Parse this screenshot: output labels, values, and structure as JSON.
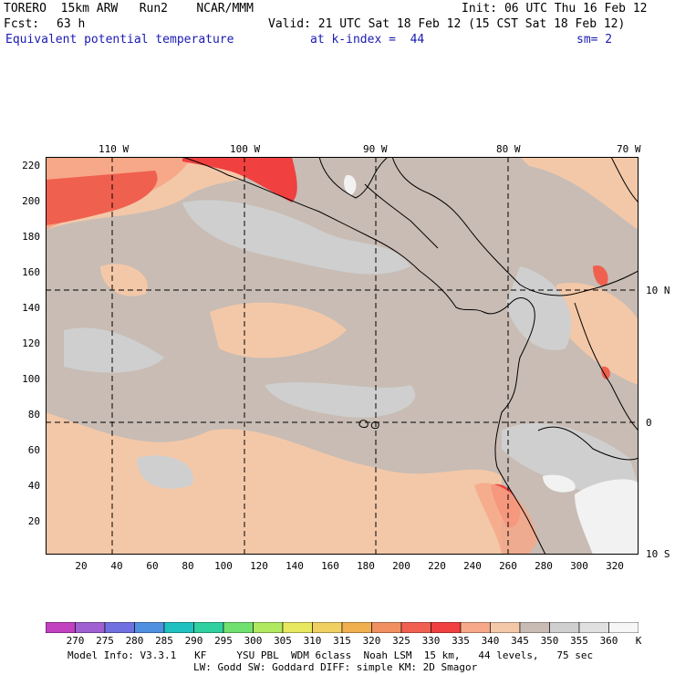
{
  "header": {
    "model": "TORERO  15km ARW   Run2    NCAR/MMM",
    "init": "Init: 06 UTC Thu 16 Feb 12",
    "fcst_label": "Fcst:",
    "fcst_value": "63 h",
    "valid": "Valid: 21 UTC Sat 18 Feb 12 (15 CST Sat 18 Feb 12)",
    "field": "Equivalent potential temperature",
    "level": "at k-index =  44",
    "smooth": "sm= 2"
  },
  "map": {
    "lon_labels": [
      "110 W",
      "100 W",
      "90 W",
      "80 W",
      "70 W"
    ],
    "lat_labels": [
      "10 N",
      "0",
      "10 S"
    ],
    "x_ticks": [
      "20",
      "40",
      "60",
      "80",
      "100",
      "120",
      "140",
      "160",
      "180",
      "200",
      "220",
      "240",
      "260",
      "280",
      "300",
      "320"
    ],
    "y_ticks": [
      "220",
      "200",
      "180",
      "160",
      "140",
      "120",
      "100",
      "80",
      "60",
      "40",
      "20"
    ],
    "colors": {
      "background": "#c8bcb4",
      "gray": "#cfcfcf",
      "light_salmon": "#f3c8a8",
      "salmon": "#f6a888",
      "red": "#f0604e",
      "red_strong": "#f04040",
      "white": "#f2f2f2",
      "coast": "#000000"
    }
  },
  "colorbar": {
    "values": [
      "270",
      "275",
      "280",
      "285",
      "290",
      "295",
      "300",
      "305",
      "310",
      "315",
      "320",
      "325",
      "330",
      "335",
      "340",
      "345",
      "350",
      "355",
      "360",
      "K"
    ],
    "colors": [
      "#c040c0",
      "#a060d0",
      "#7070e0",
      "#5090e0",
      "#20c0c0",
      "#30d0a0",
      "#70e070",
      "#b0e860",
      "#e8e860",
      "#f0d060",
      "#f0b050",
      "#f09060",
      "#f06050",
      "#f04040",
      "#f6a888",
      "#f3c8a8",
      "#c8bcb4",
      "#cfcfcf",
      "#e0e0e0",
      "#f6f6f6"
    ]
  },
  "footer": {
    "line1": "Model Info: V3.3.1   KF     YSU PBL  WDM 6class  Noah LSM  15 km,   44 levels,   75 sec",
    "line2": "LW: Godd SW: Goddard DIFF: simple KM: 2D Smagor"
  }
}
